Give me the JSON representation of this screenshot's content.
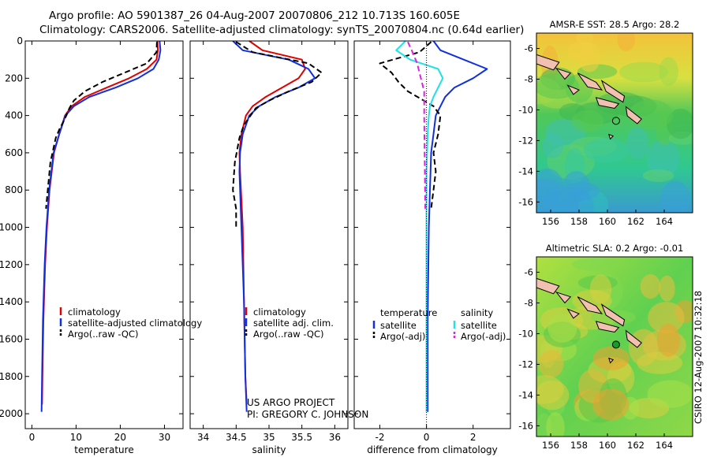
{
  "header": {
    "line1": "Argo profile: AO 5901387_26 04-Aug-2007 20070806_212 10.713S 160.605E",
    "line2": "Climatology: CARS2006. Satellite-adjusted climatology: synTS_20070804.nc (0.64d earlier)"
  },
  "footer": {
    "project": "US ARGO PROJECT",
    "pi": "PI: GREGORY C. JOHNSON",
    "stamp": "CSIRO 12-Aug-2007 10:32:18"
  },
  "colors": {
    "climatology": "#e00000",
    "satellite": "#1030e0",
    "argo": "#000000",
    "sal_sat": "#20e0e8",
    "argo_adj": "#e020e0"
  },
  "chart_data": [
    {
      "type": "line",
      "xlabel": "temperature",
      "xlim": [
        -1.5,
        34.2
      ],
      "xticks": [
        0,
        10,
        20,
        30
      ],
      "ylim": [
        2080,
        0
      ],
      "yticks": [
        0,
        200,
        400,
        600,
        800,
        1000,
        1200,
        1400,
        1600,
        1800,
        2000
      ],
      "series": [
        {
          "name": "climatology",
          "color": "#e00000",
          "dash": "",
          "x": [
            28.4,
            28.5,
            28.2,
            26,
            22,
            17,
            12,
            9,
            7.5,
            6.2,
            5,
            4,
            3.4,
            3.0,
            2.6,
            2.4,
            2.3
          ],
          "y": [
            0,
            50,
            100,
            150,
            200,
            250,
            300,
            350,
            400,
            500,
            600,
            800,
            1000,
            1200,
            1500,
            1800,
            1950
          ]
        },
        {
          "name": "satellite-adjusted climatology",
          "color": "#1030e0",
          "dash": "",
          "x": [
            28.9,
            29.1,
            28.7,
            27.5,
            24,
            19,
            13,
            9.5,
            7.6,
            6.2,
            4.9,
            3.9,
            3.3,
            2.9,
            2.5,
            2.3,
            2.2
          ],
          "y": [
            0,
            50,
            100,
            150,
            200,
            250,
            300,
            350,
            400,
            500,
            600,
            800,
            1000,
            1200,
            1500,
            1800,
            1990
          ]
        },
        {
          "name": "Argo(..raw -QC)",
          "color": "#000000",
          "dash": "7,4",
          "x": [
            28.3,
            28.2,
            26,
            21,
            16,
            12,
            9.5,
            8.5,
            7.8,
            7.2,
            6.3,
            5.4,
            4.2,
            3.2
          ],
          "y": [
            5,
            60,
            120,
            170,
            220,
            270,
            320,
            360,
            400,
            430,
            470,
            520,
            650,
            900
          ]
        }
      ],
      "legend": [
        "climatology",
        "satellite-adjusted climatology",
        "Argo(..raw -QC)"
      ],
      "legend_position": "lower-right"
    },
    {
      "type": "line",
      "xlabel": "salinity",
      "xlim": [
        33.8,
        36.2
      ],
      "xticks": [
        34,
        34.5,
        35,
        35.5,
        36
      ],
      "ylim": [
        2080,
        0
      ],
      "series": [
        {
          "name": "climatology",
          "color": "#e00000",
          "dash": "",
          "x": [
            34.7,
            34.9,
            35.5,
            35.55,
            35.45,
            35.2,
            34.95,
            34.75,
            34.65,
            34.58,
            34.55,
            34.56,
            34.6,
            34.62,
            34.64,
            34.66
          ],
          "y": [
            0,
            50,
            100,
            150,
            200,
            250,
            300,
            350,
            400,
            500,
            600,
            700,
            1000,
            1400,
            1800,
            1950
          ]
        },
        {
          "name": "satellite adj. clim.",
          "color": "#1030e0",
          "dash": "",
          "x": [
            34.45,
            34.6,
            35.3,
            35.6,
            35.7,
            35.45,
            35.1,
            34.85,
            34.7,
            34.6,
            34.56,
            34.55,
            34.58,
            34.62,
            34.64,
            34.66
          ],
          "y": [
            0,
            50,
            100,
            150,
            200,
            250,
            300,
            350,
            400,
            500,
            600,
            700,
            1000,
            1400,
            1800,
            1990
          ]
        },
        {
          "name": "Argo(..raw -QC)",
          "color": "#000000",
          "dash": "7,4",
          "x": [
            34.5,
            34.75,
            35.6,
            35.8,
            35.65,
            35.3,
            35.0,
            34.8,
            34.72,
            34.62,
            34.55,
            34.48,
            34.45,
            34.5,
            34.5
          ],
          "y": [
            5,
            60,
            120,
            170,
            220,
            270,
            320,
            360,
            400,
            450,
            520,
            650,
            800,
            900,
            1000
          ]
        }
      ],
      "legend": [
        "climatology",
        "satellite adj. clim.",
        "Argo(..raw -QC)"
      ],
      "legend_position": "lower-right"
    },
    {
      "type": "line",
      "xlabel": "difference from climatology",
      "xlim": [
        -3.1,
        3.6
      ],
      "xticks": [
        -2,
        0,
        2
      ],
      "ylim": [
        2080,
        0
      ],
      "series": [
        {
          "name": "temperature satellite",
          "color": "#1030e0",
          "dash": "",
          "x": [
            0.3,
            0.6,
            1.6,
            2.6,
            2.0,
            1.2,
            0.8,
            0.6,
            0.4,
            0.3,
            0.2,
            0.15,
            0.1,
            0.05,
            0.05
          ],
          "y": [
            0,
            50,
            100,
            150,
            200,
            250,
            300,
            350,
            400,
            500,
            600,
            800,
            1000,
            1500,
            1990
          ]
        },
        {
          "name": "temperature Argo(-adj)",
          "color": "#000000",
          "dash": "7,4",
          "x": [
            0.2,
            -0.3,
            -2.0,
            -1.5,
            -1.2,
            -0.8,
            0.3,
            0.6,
            0.5,
            0.3,
            0.4,
            0.3,
            0.2
          ],
          "y": [
            5,
            60,
            120,
            170,
            220,
            270,
            350,
            400,
            500,
            600,
            700,
            800,
            900
          ]
        },
        {
          "name": "salinity satellite",
          "color": "#20e0e8",
          "dash": "",
          "x": [
            -0.9,
            -1.3,
            -0.7,
            0.5,
            0.7,
            0.5,
            0.3,
            0.15,
            0.1,
            0.05,
            0,
            0,
            0
          ],
          "y": [
            0,
            50,
            100,
            150,
            200,
            250,
            300,
            350,
            400,
            500,
            700,
            1000,
            1990
          ]
        },
        {
          "name": "salinity Argo(-adj)",
          "color": "#e020e0",
          "dash": "7,4",
          "x": [
            -0.8,
            -0.6,
            -0.4,
            -0.3,
            -0.2,
            -0.1,
            -0.1,
            -0.05
          ],
          "y": [
            5,
            60,
            120,
            170,
            220,
            270,
            400,
            900
          ]
        }
      ],
      "legend_heads": [
        "temperature",
        "salinity"
      ],
      "legend": [
        "satellite",
        "Argo(-adj)",
        "satellite",
        "Argo(-adj)"
      ],
      "legend_position": "lower"
    }
  ],
  "maps": [
    {
      "title": "AMSR-E SST: 28.5 Argo: 28.2",
      "xticks": [
        "156",
        "158",
        "160",
        "162",
        "164"
      ],
      "yticks": [
        "-6",
        "-8",
        "-10",
        "-12",
        "-14",
        "-16"
      ],
      "marker_fill": "none"
    },
    {
      "title": "Altimetric SLA: 0.2 Argo: -0.01",
      "xticks": [
        "156",
        "158",
        "160",
        "162",
        "164"
      ],
      "yticks": [
        "-6",
        "-8",
        "-10",
        "-12",
        "-14",
        "-16"
      ],
      "marker_fill": "#1a9a2a"
    }
  ]
}
